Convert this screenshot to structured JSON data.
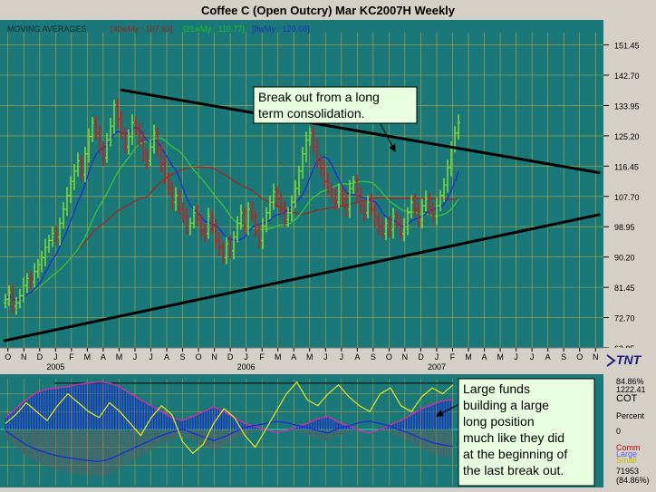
{
  "window": {
    "title": "Coffee C (Open Outcry) Mar KC2007H Weekly"
  },
  "legend": {
    "label": "MOVING AVERAGES",
    "items": [
      {
        "text": "[40wMy : 107.63]",
        "color": "#a02020"
      },
      {
        "text": "[21wMy : 110.77]",
        "color": "#20c020"
      },
      {
        "text": "[8wMy : 120.68]",
        "color": "#2030c0"
      }
    ]
  },
  "colors": {
    "panel_bg": "#1a7878",
    "grid": "#b9a64a",
    "up_bar": "#7cd83a",
    "down_bar": "#c81e1e",
    "trendline": "#000000",
    "ma_short": "#1f2fd0",
    "ma_mid": "#38c43a",
    "ma_long": "#a02828",
    "annotation_bg": "#e8ffe0",
    "cot_large": "#2030d0",
    "cot_comm": "#606060",
    "cot_small": "#e8e820",
    "cot_pink": "#d030a0"
  },
  "chart_data": [
    {
      "type": "candlestick",
      "title": "Coffee C (Open Outcry) Mar KC2007H Weekly",
      "ylim": [
        63.95,
        155
      ],
      "y_ticks": [
        "151.45",
        "142.70",
        "133.95",
        "125.20",
        "116.45",
        "107.70",
        "98.95",
        "90.20",
        "81.45",
        "72.70",
        "63.95"
      ],
      "x_months": [
        "O",
        "N",
        "D",
        "J",
        "F",
        "M",
        "A",
        "M",
        "J",
        "J",
        "A",
        "S",
        "O",
        "N",
        "D",
        "J",
        "F",
        "M",
        "A",
        "M",
        "J",
        "J",
        "A",
        "S",
        "O",
        "N",
        "D",
        "J",
        "F",
        "M",
        "A",
        "M",
        "J",
        "J",
        "A",
        "S",
        "O",
        "N"
      ],
      "x_years": [
        "2005",
        "2006",
        "2007"
      ],
      "closes": [
        78,
        80,
        76,
        77,
        79,
        82,
        84,
        83,
        86,
        88,
        90,
        93,
        95,
        97,
        96,
        100,
        104,
        108,
        112,
        115,
        118,
        114,
        120,
        125,
        129,
        126,
        122,
        119,
        124,
        128,
        134,
        130,
        126,
        122,
        125,
        129,
        127,
        124,
        120,
        118,
        122,
        126,
        121,
        117,
        113,
        110,
        106,
        108,
        104,
        102,
        99,
        100,
        103,
        101,
        98,
        97,
        102,
        99,
        95,
        93,
        90,
        94,
        92,
        96,
        100,
        103,
        99,
        104,
        102,
        98,
        95,
        99,
        103,
        106,
        109,
        107,
        104,
        101,
        103,
        106,
        110,
        115,
        120,
        124,
        126,
        122,
        118,
        116,
        112,
        110,
        108,
        106,
        109,
        107,
        104,
        110,
        112,
        108,
        105,
        103,
        106,
        104,
        101,
        99,
        97,
        100,
        98,
        102,
        100,
        97,
        99,
        103,
        106,
        104,
        101,
        105,
        107,
        104,
        102,
        105,
        108,
        111,
        116,
        122,
        126,
        129
      ],
      "moving_averages": [
        {
          "name": "8wMy",
          "last": 120.68
        },
        {
          "name": "21wMy",
          "last": 110.77
        },
        {
          "name": "40wMy",
          "last": 107.63
        }
      ],
      "trendlines": [
        {
          "from": {
            "bar": 36,
            "price": 138.5
          },
          "to": {
            "bar": 184,
            "price": 114.5
          }
        },
        {
          "from": {
            "bar": 0,
            "price": 66.0
          },
          "to": {
            "bar": 184,
            "price": 102.5
          }
        }
      ],
      "annotations": [
        {
          "text_lines": [
            "Break out from a long",
            "term consolidation."
          ]
        }
      ]
    },
    {
      "type": "line",
      "title": "COT",
      "right_labels": [
        "84.86%",
        "1222.41",
        "COT",
        "Percent",
        "0",
        "Comm",
        "Large",
        "Small",
        "71953",
        "(84.86%)"
      ],
      "series": [
        {
          "name": "Large",
          "values": [
            20,
            35,
            50,
            62,
            68,
            70,
            72,
            76,
            78,
            80,
            78,
            72,
            60,
            50,
            40,
            30,
            20,
            15,
            22,
            30,
            38,
            30,
            20,
            10,
            5,
            0,
            -5,
            -2,
            5,
            10,
            18,
            22,
            12,
            6,
            -2,
            -6,
            0,
            8,
            15,
            25,
            35,
            42,
            48,
            50
          ]
        },
        {
          "name": "Comm",
          "values": [
            -15,
            -30,
            -45,
            -55,
            -62,
            -68,
            -72,
            -75,
            -78,
            -80,
            -75,
            -65,
            -55,
            -45,
            -35,
            -25,
            -18,
            -12,
            -20,
            -28,
            -36,
            -28,
            -18,
            -8,
            -4,
            0,
            4,
            2,
            -4,
            -8,
            -15,
            -20,
            -10,
            -5,
            2,
            5,
            0,
            -6,
            -14,
            -22,
            -32,
            -40,
            -45,
            -48
          ]
        },
        {
          "name": "Small",
          "values": [
            10,
            25,
            45,
            30,
            15,
            40,
            60,
            45,
            30,
            20,
            45,
            30,
            10,
            -10,
            20,
            40,
            25,
            -20,
            -40,
            -25,
            10,
            35,
            20,
            -10,
            -30,
            0,
            30,
            60,
            80,
            50,
            40,
            60,
            75,
            55,
            40,
            30,
            60,
            70,
            40,
            30,
            55,
            70,
            60,
            75
          ]
        }
      ],
      "annotations": [
        {
          "text_lines": [
            "Large funds",
            "building a large",
            "long position",
            "much like they did",
            "at the beginning of",
            "the last break out."
          ]
        }
      ]
    }
  ]
}
